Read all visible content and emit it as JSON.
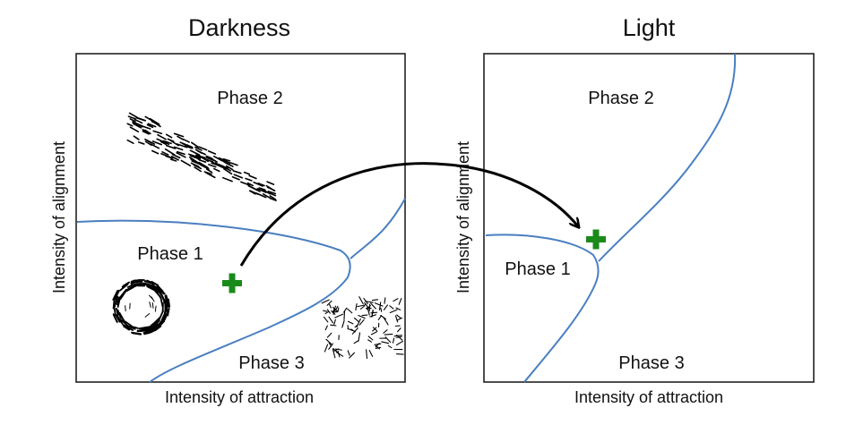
{
  "panels": [
    {
      "title": "Darkness",
      "xlabel": "Intensity of attraction",
      "ylabel": "Intensity of alignment",
      "phases": [
        "Phase 2",
        "Phase 1",
        "Phase 3"
      ]
    },
    {
      "title": "Light",
      "xlabel": "Intensity of attraction",
      "ylabel": "Intensity of alignment",
      "phases": [
        "Phase 2",
        "Phase 1",
        "Phase 3"
      ]
    }
  ],
  "colors": {
    "boundary": "#4a7fc1",
    "marker": "#1a8a1a",
    "arrow": "#000000",
    "frame": "#222222"
  },
  "icons": [
    "plus-marker",
    "swarm-school-illustration",
    "swarm-mill-illustration",
    "swarm-disordered-illustration"
  ]
}
